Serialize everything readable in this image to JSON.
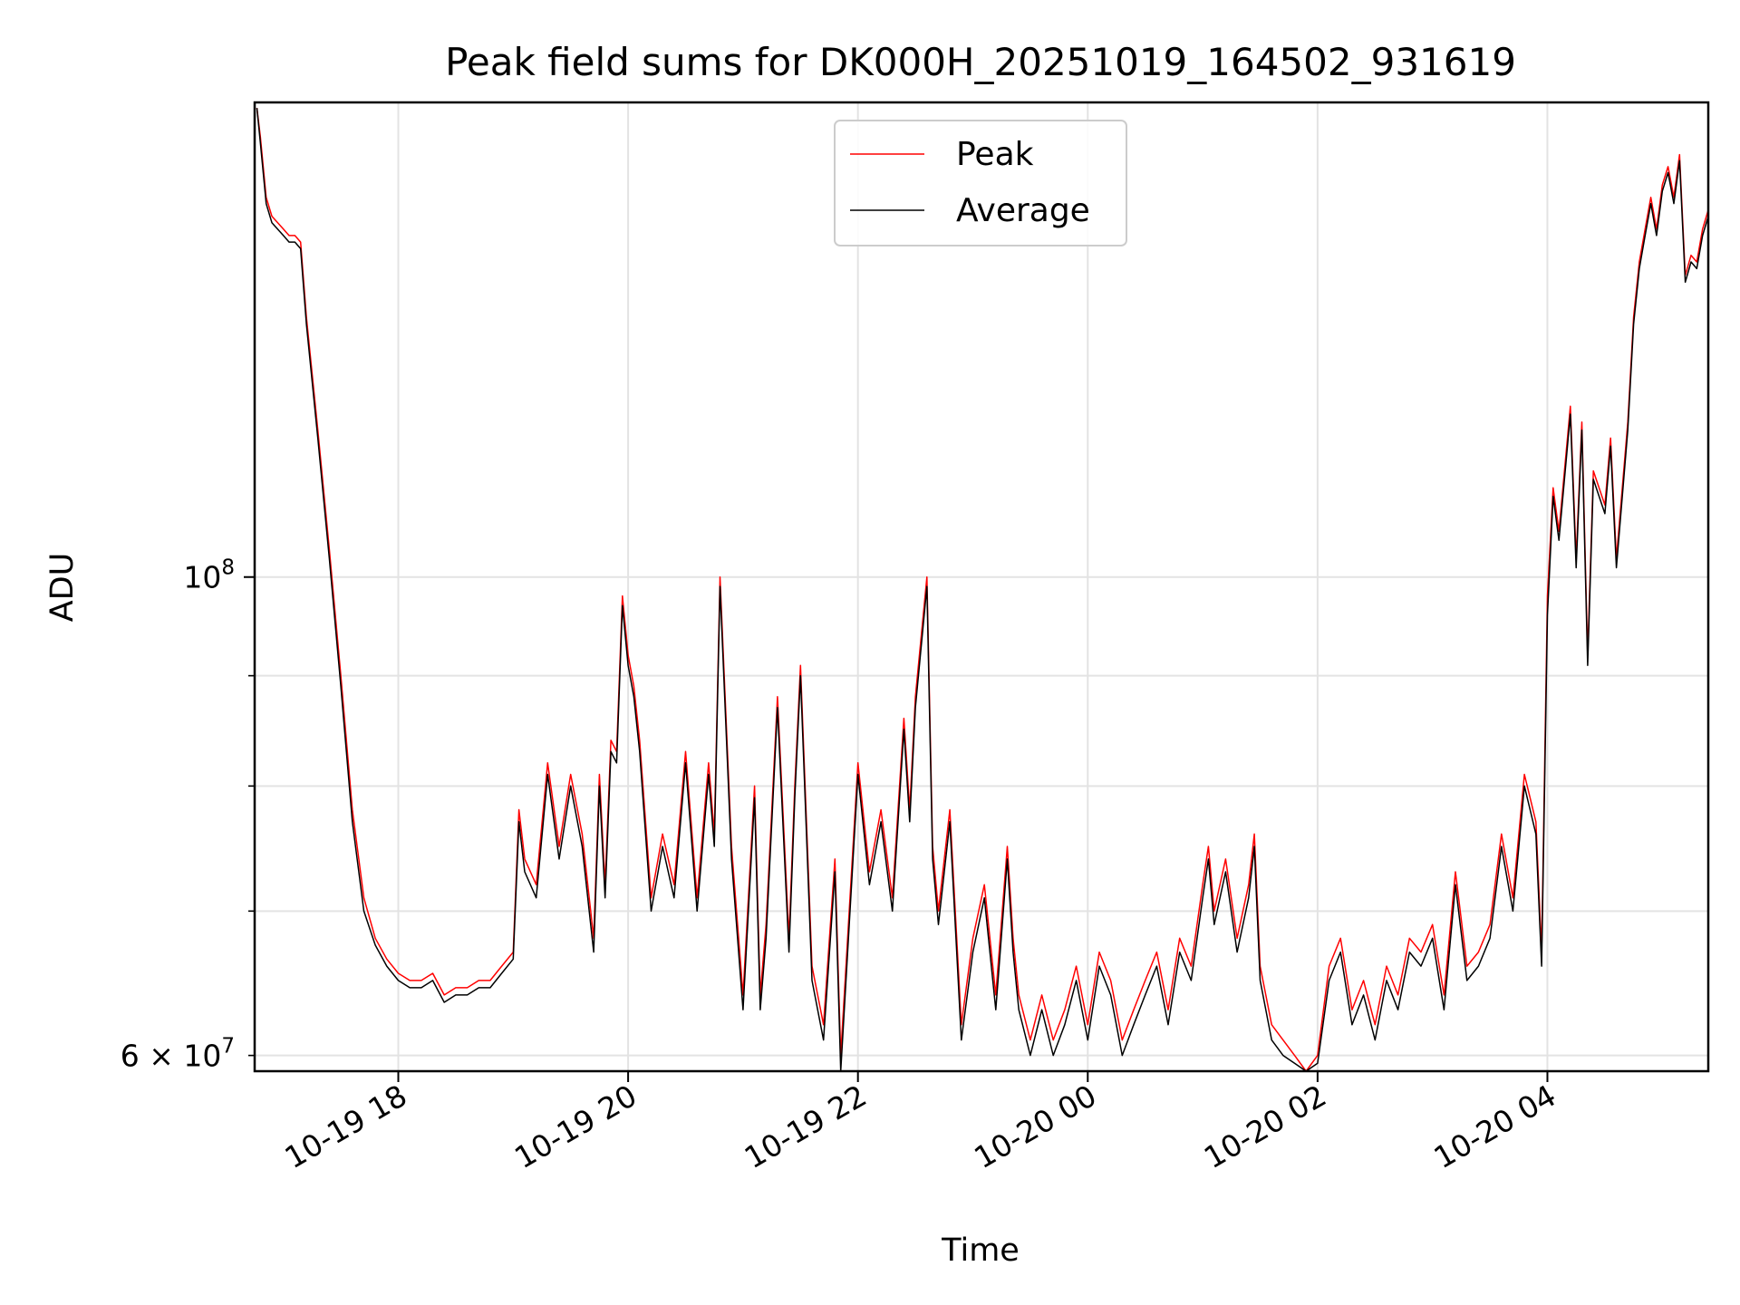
{
  "chart_data": {
    "type": "line",
    "title": "Peak field sums for DK000H_20251019_164502_931619",
    "xlabel": "Time",
    "ylabel": "ADU",
    "yscale": "log",
    "ylim": [
      59000000,
      166000000
    ],
    "xlim_hours": [
      16.75,
      29.4
    ],
    "x_unit": "hours since 2025-10-19 00:00",
    "grid": true,
    "legend_position": "upper center",
    "x_ticks": [
      {
        "value": 18,
        "label": "10-19 18"
      },
      {
        "value": 20,
        "label": "10-19 20"
      },
      {
        "value": 22,
        "label": "10-19 22"
      },
      {
        "value": 24,
        "label": "10-20 00"
      },
      {
        "value": 26,
        "label": "10-20 02"
      },
      {
        "value": 28,
        "label": "10-20 04"
      }
    ],
    "y_major_ticks": [
      {
        "value": 100000000,
        "base": "10",
        "exp": "8"
      }
    ],
    "y_minor_ticks": [
      {
        "value": 60000000,
        "mantissa": "6",
        "base": "10",
        "exp": "7",
        "labeled": true
      },
      {
        "value": 70000000,
        "labeled": false
      },
      {
        "value": 80000000,
        "labeled": false
      },
      {
        "value": 90000000,
        "labeled": false
      }
    ],
    "series": [
      {
        "name": "Peak",
        "color": "#ff0000",
        "points": [
          [
            16.77,
            165
          ],
          [
            16.8,
            160
          ],
          [
            16.85,
            150
          ],
          [
            16.9,
            147
          ],
          [
            17.0,
            145
          ],
          [
            17.05,
            144
          ],
          [
            17.1,
            144
          ],
          [
            17.15,
            143
          ],
          [
            17.2,
            132
          ],
          [
            17.3,
            117
          ],
          [
            17.4,
            103
          ],
          [
            17.5,
            90
          ],
          [
            17.6,
            78
          ],
          [
            17.7,
            71
          ],
          [
            17.8,
            68
          ],
          [
            17.9,
            66.5
          ],
          [
            18.0,
            65.5
          ],
          [
            18.1,
            65
          ],
          [
            18.2,
            65
          ],
          [
            18.3,
            65.5
          ],
          [
            18.4,
            64
          ],
          [
            18.5,
            64.5
          ],
          [
            18.6,
            64.5
          ],
          [
            18.7,
            65
          ],
          [
            18.8,
            65
          ],
          [
            18.9,
            66
          ],
          [
            19.0,
            67
          ],
          [
            19.05,
            78
          ],
          [
            19.1,
            74
          ],
          [
            19.2,
            72
          ],
          [
            19.3,
            82
          ],
          [
            19.4,
            75
          ],
          [
            19.5,
            81
          ],
          [
            19.6,
            76
          ],
          [
            19.7,
            68
          ],
          [
            19.75,
            81
          ],
          [
            19.8,
            72
          ],
          [
            19.85,
            84
          ],
          [
            19.9,
            83
          ],
          [
            19.95,
            98
          ],
          [
            20.0,
            92
          ],
          [
            20.05,
            89
          ],
          [
            20.1,
            84
          ],
          [
            20.2,
            71
          ],
          [
            20.3,
            76
          ],
          [
            20.4,
            72
          ],
          [
            20.5,
            83
          ],
          [
            20.6,
            71
          ],
          [
            20.7,
            82
          ],
          [
            20.75,
            76
          ],
          [
            20.8,
            100
          ],
          [
            20.9,
            75
          ],
          [
            21.0,
            64
          ],
          [
            21.1,
            80
          ],
          [
            21.15,
            64
          ],
          [
            21.2,
            69
          ],
          [
            21.3,
            88
          ],
          [
            21.4,
            68
          ],
          [
            21.45,
            80
          ],
          [
            21.5,
            91
          ],
          [
            21.6,
            66
          ],
          [
            21.7,
            62
          ],
          [
            21.8,
            74
          ],
          [
            21.85,
            60
          ],
          [
            22.0,
            82
          ],
          [
            22.1,
            73
          ],
          [
            22.2,
            78
          ],
          [
            22.3,
            71
          ],
          [
            22.4,
            86
          ],
          [
            22.45,
            78
          ],
          [
            22.5,
            88
          ],
          [
            22.6,
            100
          ],
          [
            22.65,
            75
          ],
          [
            22.7,
            70
          ],
          [
            22.8,
            78
          ],
          [
            22.9,
            62
          ],
          [
            23.0,
            68
          ],
          [
            23.1,
            72
          ],
          [
            23.2,
            64
          ],
          [
            23.3,
            75
          ],
          [
            23.35,
            68
          ],
          [
            23.4,
            64
          ],
          [
            23.5,
            61
          ],
          [
            23.6,
            64
          ],
          [
            23.7,
            61
          ],
          [
            23.8,
            63
          ],
          [
            23.9,
            66
          ],
          [
            24.0,
            62
          ],
          [
            24.1,
            67
          ],
          [
            24.2,
            65
          ],
          [
            24.3,
            61
          ],
          [
            24.4,
            63
          ],
          [
            24.5,
            65
          ],
          [
            24.6,
            67
          ],
          [
            24.7,
            63
          ],
          [
            24.8,
            68
          ],
          [
            24.9,
            66
          ],
          [
            25.0,
            72
          ],
          [
            25.05,
            75
          ],
          [
            25.1,
            70
          ],
          [
            25.2,
            74
          ],
          [
            25.3,
            68
          ],
          [
            25.4,
            72
          ],
          [
            25.45,
            76
          ],
          [
            25.5,
            66
          ],
          [
            25.6,
            62
          ],
          [
            25.7,
            61
          ],
          [
            25.8,
            60
          ],
          [
            25.9,
            59
          ],
          [
            26.0,
            60
          ],
          [
            26.1,
            66
          ],
          [
            26.2,
            68
          ],
          [
            26.3,
            63
          ],
          [
            26.4,
            65
          ],
          [
            26.5,
            62
          ],
          [
            26.6,
            66
          ],
          [
            26.7,
            64
          ],
          [
            26.8,
            68
          ],
          [
            26.9,
            67
          ],
          [
            27.0,
            69
          ],
          [
            27.1,
            64
          ],
          [
            27.2,
            73
          ],
          [
            27.3,
            66
          ],
          [
            27.4,
            67
          ],
          [
            27.5,
            69
          ],
          [
            27.6,
            76
          ],
          [
            27.7,
            71
          ],
          [
            27.8,
            81
          ],
          [
            27.9,
            77
          ],
          [
            27.95,
            67
          ],
          [
            28.0,
            98
          ],
          [
            28.05,
            110
          ],
          [
            28.1,
            105
          ],
          [
            28.2,
            120
          ],
          [
            28.25,
            102
          ],
          [
            28.3,
            118
          ],
          [
            28.35,
            92
          ],
          [
            28.4,
            112
          ],
          [
            28.5,
            108
          ],
          [
            28.55,
            116
          ],
          [
            28.6,
            102
          ],
          [
            28.7,
            118
          ],
          [
            28.75,
            132
          ],
          [
            28.8,
            140
          ],
          [
            28.85,
            145
          ],
          [
            28.9,
            150
          ],
          [
            28.95,
            145
          ],
          [
            29.0,
            152
          ],
          [
            29.05,
            155
          ],
          [
            29.1,
            150
          ],
          [
            29.15,
            157
          ],
          [
            29.2,
            138
          ],
          [
            29.25,
            141
          ],
          [
            29.3,
            140
          ],
          [
            29.35,
            145
          ],
          [
            29.4,
            148
          ]
        ]
      },
      {
        "name": "Average",
        "color": "#000000",
        "points": [
          [
            16.77,
            165
          ],
          [
            16.8,
            159
          ],
          [
            16.85,
            149
          ],
          [
            16.9,
            146
          ],
          [
            17.0,
            144
          ],
          [
            17.05,
            143
          ],
          [
            17.1,
            143
          ],
          [
            17.15,
            142
          ],
          [
            17.2,
            131
          ],
          [
            17.3,
            116
          ],
          [
            17.4,
            102
          ],
          [
            17.5,
            89
          ],
          [
            17.6,
            77
          ],
          [
            17.7,
            70
          ],
          [
            17.8,
            67.5
          ],
          [
            17.9,
            66
          ],
          [
            18.0,
            65
          ],
          [
            18.1,
            64.5
          ],
          [
            18.2,
            64.5
          ],
          [
            18.3,
            65
          ],
          [
            18.4,
            63.5
          ],
          [
            18.5,
            64
          ],
          [
            18.6,
            64
          ],
          [
            18.7,
            64.5
          ],
          [
            18.8,
            64.5
          ],
          [
            18.9,
            65.5
          ],
          [
            19.0,
            66.5
          ],
          [
            19.05,
            77
          ],
          [
            19.1,
            73
          ],
          [
            19.2,
            71
          ],
          [
            19.3,
            81
          ],
          [
            19.4,
            74
          ],
          [
            19.5,
            80
          ],
          [
            19.6,
            75
          ],
          [
            19.7,
            67
          ],
          [
            19.75,
            80
          ],
          [
            19.8,
            71
          ],
          [
            19.85,
            83
          ],
          [
            19.9,
            82
          ],
          [
            19.95,
            97
          ],
          [
            20.0,
            91
          ],
          [
            20.05,
            88
          ],
          [
            20.1,
            83
          ],
          [
            20.2,
            70
          ],
          [
            20.3,
            75
          ],
          [
            20.4,
            71
          ],
          [
            20.5,
            82
          ],
          [
            20.6,
            70
          ],
          [
            20.7,
            81
          ],
          [
            20.75,
            75
          ],
          [
            20.8,
            99
          ],
          [
            20.9,
            74
          ],
          [
            21.0,
            63
          ],
          [
            21.1,
            79
          ],
          [
            21.15,
            63
          ],
          [
            21.2,
            68
          ],
          [
            21.3,
            87
          ],
          [
            21.4,
            67
          ],
          [
            21.45,
            79
          ],
          [
            21.5,
            90
          ],
          [
            21.6,
            65
          ],
          [
            21.7,
            61
          ],
          [
            21.8,
            73
          ],
          [
            21.85,
            59
          ],
          [
            22.0,
            81
          ],
          [
            22.1,
            72
          ],
          [
            22.2,
            77
          ],
          [
            22.3,
            70
          ],
          [
            22.4,
            85
          ],
          [
            22.45,
            77
          ],
          [
            22.5,
            87
          ],
          [
            22.6,
            99
          ],
          [
            22.65,
            74
          ],
          [
            22.7,
            69
          ],
          [
            22.8,
            77
          ],
          [
            22.9,
            61
          ],
          [
            23.0,
            67
          ],
          [
            23.1,
            71
          ],
          [
            23.2,
            63
          ],
          [
            23.3,
            74
          ],
          [
            23.35,
            67
          ],
          [
            23.4,
            63
          ],
          [
            23.5,
            60
          ],
          [
            23.6,
            63
          ],
          [
            23.7,
            60
          ],
          [
            23.8,
            62
          ],
          [
            23.9,
            65
          ],
          [
            24.0,
            61
          ],
          [
            24.1,
            66
          ],
          [
            24.2,
            64
          ],
          [
            24.3,
            60
          ],
          [
            24.4,
            62
          ],
          [
            24.5,
            64
          ],
          [
            24.6,
            66
          ],
          [
            24.7,
            62
          ],
          [
            24.8,
            67
          ],
          [
            24.9,
            65
          ],
          [
            25.0,
            71
          ],
          [
            25.05,
            74
          ],
          [
            25.1,
            69
          ],
          [
            25.2,
            73
          ],
          [
            25.3,
            67
          ],
          [
            25.4,
            71
          ],
          [
            25.45,
            75
          ],
          [
            25.5,
            65
          ],
          [
            25.6,
            61
          ],
          [
            25.7,
            60
          ],
          [
            25.8,
            59.5
          ],
          [
            25.9,
            59
          ],
          [
            26.0,
            59.5
          ],
          [
            26.1,
            65
          ],
          [
            26.2,
            67
          ],
          [
            26.3,
            62
          ],
          [
            26.4,
            64
          ],
          [
            26.5,
            61
          ],
          [
            26.6,
            65
          ],
          [
            26.7,
            63
          ],
          [
            26.8,
            67
          ],
          [
            26.9,
            66
          ],
          [
            27.0,
            68
          ],
          [
            27.1,
            63
          ],
          [
            27.2,
            72
          ],
          [
            27.3,
            65
          ],
          [
            27.4,
            66
          ],
          [
            27.5,
            68
          ],
          [
            27.6,
            75
          ],
          [
            27.7,
            70
          ],
          [
            27.8,
            80
          ],
          [
            27.9,
            76
          ],
          [
            27.95,
            66
          ],
          [
            28.0,
            96
          ],
          [
            28.05,
            109
          ],
          [
            28.1,
            104
          ],
          [
            28.2,
            119
          ],
          [
            28.25,
            101
          ],
          [
            28.3,
            117
          ],
          [
            28.35,
            91
          ],
          [
            28.4,
            111
          ],
          [
            28.5,
            107
          ],
          [
            28.55,
            115
          ],
          [
            28.6,
            101
          ],
          [
            28.7,
            117
          ],
          [
            28.75,
            131
          ],
          [
            28.8,
            139
          ],
          [
            28.85,
            144
          ],
          [
            28.9,
            149
          ],
          [
            28.95,
            144
          ],
          [
            29.0,
            151
          ],
          [
            29.05,
            154
          ],
          [
            29.1,
            149
          ],
          [
            29.15,
            156
          ],
          [
            29.2,
            137
          ],
          [
            29.25,
            140
          ],
          [
            29.3,
            139
          ],
          [
            29.35,
            144
          ],
          [
            29.4,
            147
          ]
        ]
      }
    ]
  }
}
